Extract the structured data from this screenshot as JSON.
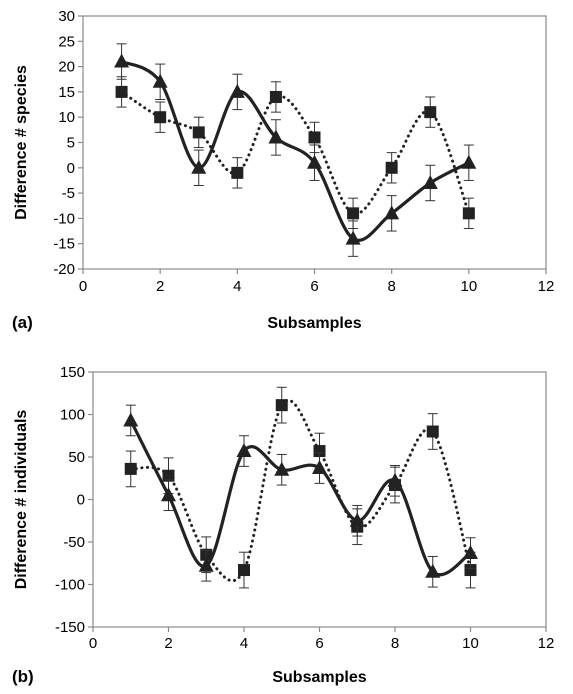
{
  "chart_data": [
    {
      "type": "line",
      "panel_label": "(a)",
      "xlabel": "Subsamples",
      "ylabel": "Difference # species",
      "xlim": [
        0,
        12
      ],
      "ylim": [
        -20,
        30
      ],
      "xticks": [
        0,
        2,
        4,
        6,
        8,
        10,
        12
      ],
      "yticks": [
        -20,
        -15,
        -10,
        -5,
        0,
        5,
        10,
        15,
        20,
        25,
        30
      ],
      "grid": false,
      "legend": "none",
      "series": [
        {
          "marker": "square",
          "line_style": "dotted",
          "color": "#222222",
          "x": [
            1,
            2,
            3,
            4,
            5,
            6,
            7,
            8,
            9,
            10
          ],
          "y": [
            15,
            10,
            7,
            -1,
            14,
            6,
            -9,
            0,
            11,
            -9
          ],
          "error": [
            3,
            3,
            3,
            3,
            3,
            3,
            3,
            3,
            3,
            3
          ]
        },
        {
          "marker": "triangle",
          "line_style": "solid",
          "color": "#222222",
          "x": [
            1,
            2,
            3,
            4,
            5,
            6,
            7,
            8,
            9,
            10
          ],
          "y": [
            21,
            17,
            0,
            15,
            6,
            1,
            -14,
            -9,
            -3,
            1
          ],
          "error": [
            3.5,
            3.5,
            3.5,
            3.5,
            3.5,
            3.5,
            3.5,
            3.5,
            3.5,
            3.5
          ]
        }
      ]
    },
    {
      "type": "line",
      "panel_label": "(b)",
      "xlabel": "Subsamples",
      "ylabel": "Difference # individuals",
      "xlim": [
        0,
        12
      ],
      "ylim": [
        -150,
        150
      ],
      "xticks": [
        0,
        2,
        4,
        6,
        8,
        10,
        12
      ],
      "yticks": [
        -150,
        -100,
        -50,
        0,
        50,
        100,
        150
      ],
      "grid": false,
      "legend": "none",
      "series": [
        {
          "marker": "square",
          "line_style": "dotted",
          "color": "#222222",
          "x": [
            1,
            2,
            3,
            4,
            5,
            6,
            7,
            8,
            9,
            10
          ],
          "y": [
            36,
            28,
            -65,
            -83,
            111,
            57,
            -32,
            17,
            80,
            -83
          ],
          "error": [
            21,
            21,
            21,
            21,
            21,
            21,
            21,
            21,
            21,
            21
          ]
        },
        {
          "marker": "triangle",
          "line_style": "solid",
          "color": "#222222",
          "x": [
            1,
            2,
            3,
            4,
            5,
            6,
            7,
            8,
            9,
            10
          ],
          "y": [
            93,
            5,
            -78,
            57,
            35,
            37,
            -25,
            22,
            -85,
            -63
          ],
          "error": [
            18,
            18,
            18,
            18,
            18,
            18,
            18,
            18,
            18,
            18
          ]
        }
      ]
    }
  ]
}
